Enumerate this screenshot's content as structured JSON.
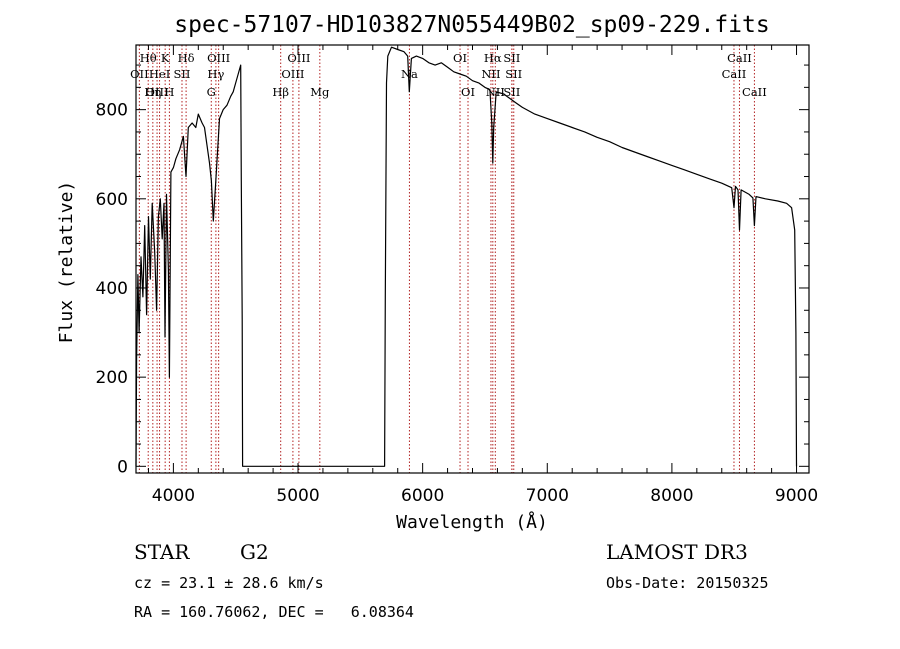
{
  "chart_data": {
    "type": "line",
    "title": "spec-57107-HD103827N055449B02_sp09-229.fits",
    "xlabel": "Wavelength (Å)",
    "ylabel": "Flux (relative)",
    "xlim": [
      3700,
      9100
    ],
    "ylim": [
      -15,
      945
    ],
    "x_ticks": [
      4000,
      5000,
      6000,
      7000,
      8000,
      9000
    ],
    "x_tick_labels": [
      "4000",
      "5000",
      "6000",
      "7000",
      "8000",
      "9000"
    ],
    "y_ticks": [
      0,
      200,
      400,
      600,
      800
    ],
    "y_tick_labels": [
      "0",
      "200",
      "400",
      "600",
      "800"
    ],
    "line_color": "#000000",
    "marker_color": "#b22222",
    "series": [
      {
        "name": "flux",
        "points": [
          [
            3700,
            0
          ],
          [
            3705,
            240
          ],
          [
            3715,
            430
          ],
          [
            3725,
            300
          ],
          [
            3740,
            470
          ],
          [
            3755,
            380
          ],
          [
            3770,
            540
          ],
          [
            3785,
            340
          ],
          [
            3800,
            560
          ],
          [
            3815,
            420
          ],
          [
            3830,
            590
          ],
          [
            3850,
            480
          ],
          [
            3865,
            350
          ],
          [
            3880,
            560
          ],
          [
            3895,
            600
          ],
          [
            3910,
            510
          ],
          [
            3925,
            590
          ],
          [
            3933,
            290
          ],
          [
            3945,
            610
          ],
          [
            3960,
            440
          ],
          [
            3968,
            200
          ],
          [
            3980,
            660
          ],
          [
            4000,
            670
          ],
          [
            4020,
            690
          ],
          [
            4050,
            710
          ],
          [
            4080,
            740
          ],
          [
            4101,
            650
          ],
          [
            4120,
            760
          ],
          [
            4150,
            770
          ],
          [
            4180,
            760
          ],
          [
            4200,
            790
          ],
          [
            4230,
            770
          ],
          [
            4250,
            760
          ],
          [
            4270,
            720
          ],
          [
            4290,
            680
          ],
          [
            4305,
            640
          ],
          [
            4320,
            550
          ],
          [
            4340,
            640
          ],
          [
            4370,
            780
          ],
          [
            4400,
            800
          ],
          [
            4430,
            810
          ],
          [
            4460,
            830
          ],
          [
            4480,
            840
          ],
          [
            4500,
            860
          ],
          [
            4520,
            880
          ],
          [
            4540,
            900
          ],
          [
            4545,
            640
          ],
          [
            4552,
            330
          ],
          [
            4555,
            0
          ],
          [
            4560,
            0
          ],
          [
            5695,
            0
          ],
          [
            5700,
            380
          ],
          [
            5710,
            860
          ],
          [
            5720,
            920
          ],
          [
            5750,
            940
          ],
          [
            5800,
            935
          ],
          [
            5850,
            930
          ],
          [
            5880,
            920
          ],
          [
            5893,
            840
          ],
          [
            5910,
            915
          ],
          [
            5950,
            920
          ],
          [
            6000,
            915
          ],
          [
            6050,
            905
          ],
          [
            6100,
            900
          ],
          [
            6150,
            905
          ],
          [
            6200,
            895
          ],
          [
            6250,
            885
          ],
          [
            6300,
            880
          ],
          [
            6350,
            875
          ],
          [
            6400,
            865
          ],
          [
            6450,
            860
          ],
          [
            6500,
            850
          ],
          [
            6540,
            845
          ],
          [
            6555,
            770
          ],
          [
            6563,
            680
          ],
          [
            6570,
            760
          ],
          [
            6590,
            840
          ],
          [
            6650,
            835
          ],
          [
            6700,
            825
          ],
          [
            6750,
            815
          ],
          [
            6800,
            805
          ],
          [
            6900,
            790
          ],
          [
            7000,
            780
          ],
          [
            7100,
            770
          ],
          [
            7200,
            760
          ],
          [
            7300,
            750
          ],
          [
            7400,
            738
          ],
          [
            7500,
            728
          ],
          [
            7600,
            715
          ],
          [
            7700,
            705
          ],
          [
            7800,
            695
          ],
          [
            7900,
            685
          ],
          [
            8000,
            675
          ],
          [
            8100,
            665
          ],
          [
            8200,
            655
          ],
          [
            8300,
            645
          ],
          [
            8400,
            635
          ],
          [
            8480,
            625
          ],
          [
            8498,
            580
          ],
          [
            8510,
            628
          ],
          [
            8530,
            620
          ],
          [
            8542,
            530
          ],
          [
            8555,
            620
          ],
          [
            8620,
            610
          ],
          [
            8650,
            602
          ],
          [
            8662,
            540
          ],
          [
            8675,
            605
          ],
          [
            8750,
            600
          ],
          [
            8850,
            595
          ],
          [
            8920,
            590
          ],
          [
            8960,
            580
          ],
          [
            8985,
            530
          ],
          [
            8995,
            300
          ],
          [
            9000,
            0
          ]
        ]
      }
    ],
    "line_markers": [
      {
        "label": "Hθ",
        "x": 3798,
        "row": 1
      },
      {
        "label": "OII",
        "x": 3727,
        "row": 2
      },
      {
        "label": "OIII",
        "x": 3869,
        "row": 3
      },
      {
        "label": "K",
        "x": 3934,
        "row": 1
      },
      {
        "label": "HeI",
        "x": 3889,
        "row": 2
      },
      {
        "label": "Hη",
        "x": 3835,
        "row": 3
      },
      {
        "label": "SII",
        "x": 4069,
        "row": 2
      },
      {
        "label": "H",
        "x": 3968,
        "row": 3
      },
      {
        "label": "Hδ",
        "x": 4102,
        "row": 1
      },
      {
        "label": "OIII",
        "x": 4363,
        "row": 1
      },
      {
        "label": "Hγ",
        "x": 4341,
        "row": 2
      },
      {
        "label": "G",
        "x": 4304,
        "row": 3
      },
      {
        "label": "Hβ",
        "x": 4861,
        "row": 3
      },
      {
        "label": "OIII",
        "x": 5007,
        "row": 1
      },
      {
        "label": "OIII",
        "x": 4959,
        "row": 2
      },
      {
        "label": "Mg",
        "x": 5175,
        "row": 3
      },
      {
        "label": "Na",
        "x": 5894,
        "row": 2
      },
      {
        "label": "OI",
        "x": 6300,
        "row": 1
      },
      {
        "label": "OI",
        "x": 6364,
        "row": 3
      },
      {
        "label": "Hα",
        "x": 6563,
        "row": 1
      },
      {
        "label": "SII",
        "x": 6716,
        "row": 1
      },
      {
        "label": "NII",
        "x": 6548,
        "row": 2
      },
      {
        "label": "NII",
        "x": 6583,
        "row": 3
      },
      {
        "label": "SII",
        "x": 6731,
        "row": 2
      },
      {
        "label": "SII",
        "x": 6716,
        "row": 3
      },
      {
        "label": "CaII",
        "x": 8542,
        "row": 1
      },
      {
        "label": "CaII",
        "x": 8498,
        "row": 2
      },
      {
        "label": "CaII",
        "x": 8662,
        "row": 3
      }
    ]
  },
  "info": {
    "object_class": "STAR",
    "subclass": "G2",
    "survey": "LAMOST DR3",
    "redshift": "cz = 23.1 ± 28.6 km/s",
    "obs_date": "Obs-Date: 20150325",
    "coords": "RA = 160.76062, DEC =   6.08364"
  }
}
